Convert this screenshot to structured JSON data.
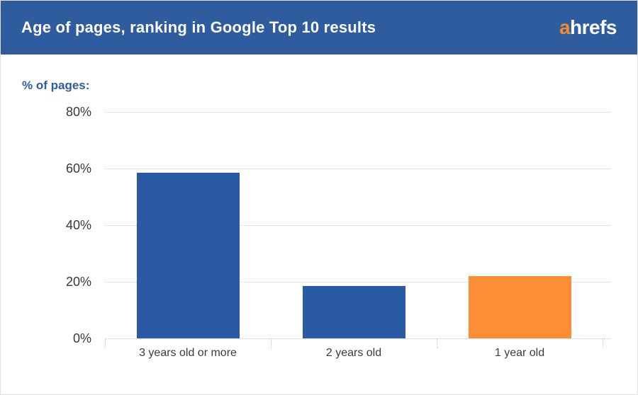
{
  "header": {
    "title": "Age of pages, ranking in Google Top 10 results",
    "logo": {
      "accent": "a",
      "rest": "hrefs"
    }
  },
  "axis_note": "% of pages:",
  "chart_data": {
    "type": "bar",
    "title": "Age of pages, ranking in Google Top 10 results",
    "ylabel": "% of pages",
    "xlabel": "",
    "categories": [
      "3 years old or more",
      "2 years old",
      "1 year old"
    ],
    "values": [
      58.5,
      18.5,
      22
    ],
    "bar_colors": [
      "#2b5aa5",
      "#2b5aa5",
      "#fb8e36"
    ],
    "ylim": [
      0,
      80
    ],
    "yticks": [
      0,
      20,
      40,
      60,
      80
    ],
    "ytick_labels": [
      "0%",
      "20%",
      "40%",
      "60%",
      "80%"
    ],
    "grid": "horizontal dotted",
    "legend": "none"
  },
  "colors": {
    "header_bg": "#2e5c9e",
    "logo_accent": "#f68b2c",
    "bar_blue": "#2b5aa5",
    "bar_orange": "#fb8e36",
    "axis_note_color": "#2e5c9e",
    "tick_text": "#383838",
    "grid_line": "#c9c9c9",
    "card_border": "#e3e3e3"
  }
}
